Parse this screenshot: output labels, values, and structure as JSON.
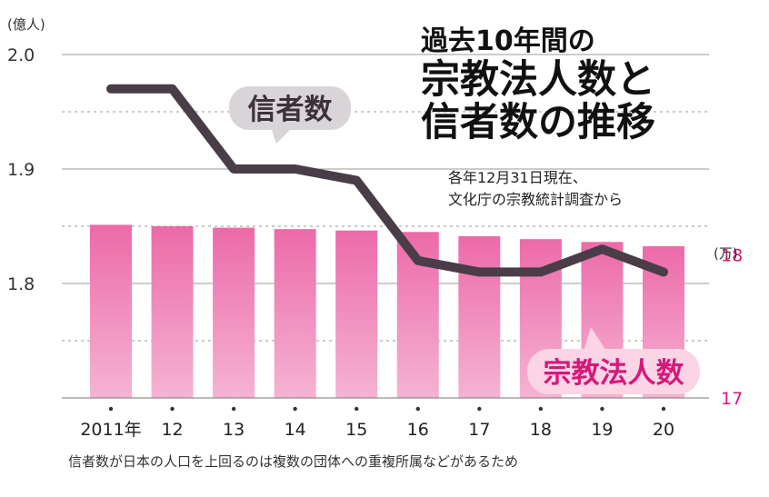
{
  "title_lines": [
    "過去10年間の",
    "宗教法人数と",
    "信者数の推移"
  ],
  "subtitle_lines": [
    "各年12月31日現在、",
    "文化庁の宗教統計調査から"
  ],
  "left_unit": "(億人)",
  "right_unit": "(万)",
  "footnote": "信者数が日本の人口を上回るのは複数の団体への重複所属などがあるため",
  "colors": {
    "line": "#4a3d47",
    "bar": "#ec6aa8",
    "bar_light": "#f5b3d3",
    "right_axis_text": "#d5197a",
    "grid": "#9a9a9a",
    "bubble_gray": "#d9d4d8",
    "bubble_pink": "#fbd4e6"
  },
  "chart_data": {
    "type": "bar+line",
    "categories": [
      "2011年",
      "12",
      "13",
      "14",
      "15",
      "16",
      "17",
      "18",
      "19",
      "20"
    ],
    "series": [
      {
        "name": "信者数",
        "type": "line",
        "axis": "left",
        "values": [
          1.97,
          1.97,
          1.9,
          1.9,
          1.89,
          1.82,
          1.81,
          1.81,
          1.83,
          1.81
        ]
      },
      {
        "name": "宗教法人数",
        "type": "bar",
        "axis": "right",
        "values": [
          18.21,
          18.2,
          18.19,
          18.18,
          18.17,
          18.16,
          18.13,
          18.11,
          18.09,
          18.06
        ]
      }
    ],
    "left_axis": {
      "ticks": [
        "2.0",
        "1.9",
        "1.8"
      ],
      "tick_values": [
        2.0,
        1.9,
        1.8
      ],
      "ylim": [
        1.7,
        2.0
      ]
    },
    "right_axis": {
      "ticks": [
        "18",
        "17"
      ],
      "tick_values": [
        18,
        17
      ],
      "ylim": [
        17,
        19.4
      ]
    },
    "grid": true
  }
}
